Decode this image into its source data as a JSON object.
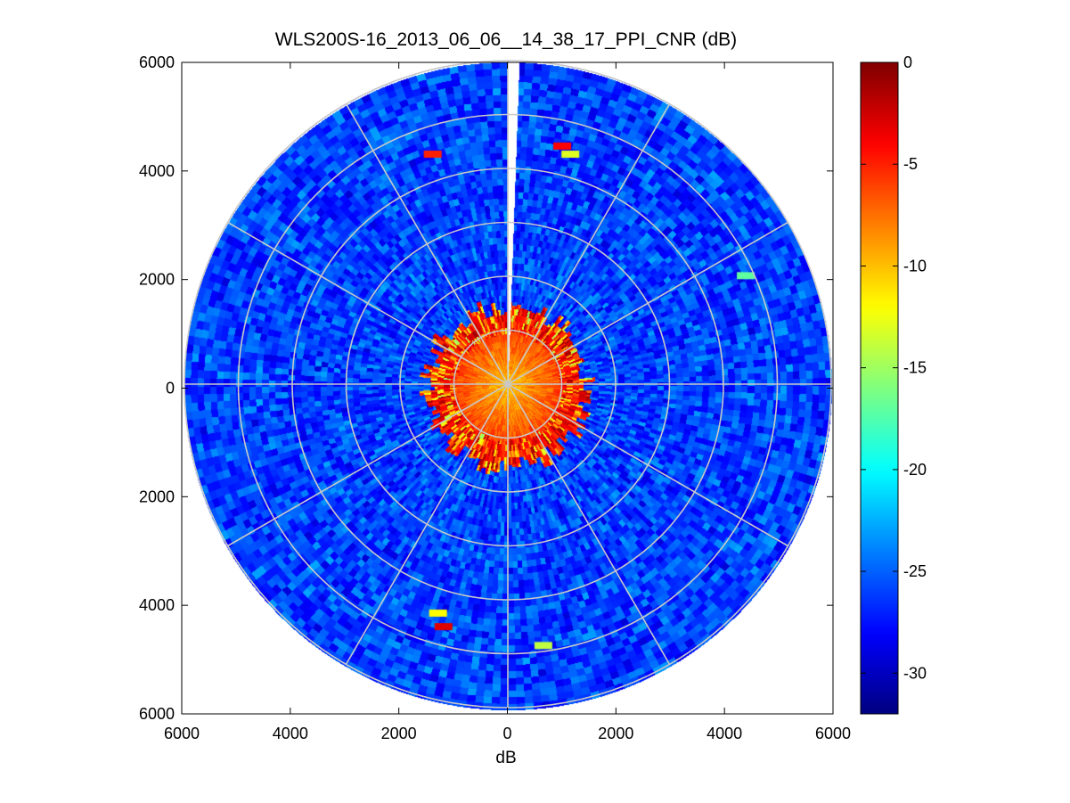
{
  "chart_data": {
    "type": "heatmap",
    "subtype": "polar-ppi",
    "title": "WLS200S-16_2013_06_06__14_38_17_PPI_CNR (dB)",
    "xlabel": "dB",
    "ylabel": "",
    "xlim": [
      -6000,
      6000
    ],
    "ylim": [
      -6000,
      6000
    ],
    "x_ticks": [
      -6000,
      -4000,
      -2000,
      0,
      2000,
      4000,
      6000
    ],
    "y_ticks": [
      -6000,
      -4000,
      -2000,
      0,
      2000,
      4000,
      6000
    ],
    "x_tick_labels": [
      "6000",
      "4000",
      "2000",
      "0",
      "2000",
      "4000",
      "6000"
    ],
    "y_tick_labels": [
      "6000",
      "4000",
      "2000",
      "0",
      "2000",
      "4000",
      "6000"
    ],
    "max_range": 6000,
    "range_rings": [
      1000,
      2000,
      3000,
      4000,
      5000,
      6000
    ],
    "spoke_angles_deg": [
      0,
      30,
      60,
      90,
      120,
      150,
      180,
      210,
      240,
      270,
      300,
      330
    ],
    "grid": true,
    "colormap": "jet",
    "colorbar": {
      "clim": [
        -32,
        0
      ],
      "ticks": [
        0,
        -5,
        -10,
        -15,
        -20,
        -25,
        -30
      ],
      "tick_labels": [
        "0",
        "-5",
        "-10",
        "-15",
        "-20",
        "-25",
        "-30"
      ],
      "location": "right"
    },
    "regions": [
      {
        "name": "background",
        "cnr_db_range": [
          -29,
          -23
        ]
      },
      {
        "name": "near-field core",
        "range_m": [
          0,
          1000
        ],
        "cnr_db_range": [
          -12,
          -6
        ]
      },
      {
        "name": "near-field edge",
        "range_m": [
          1000,
          1500
        ],
        "cnr_db_range": [
          -6,
          -1
        ]
      },
      {
        "name": "blind sector",
        "azimuth_deg": [
          0,
          2
        ],
        "value": "no data"
      }
    ],
    "hotspots": [
      {
        "x": -1400,
        "y": 4300,
        "cnr_db": -5
      },
      {
        "x": 1000,
        "y": 4450,
        "cnr_db": -4
      },
      {
        "x": 1150,
        "y": 4300,
        "cnr_db": -13
      },
      {
        "x": 4400,
        "y": 2050,
        "cnr_db": -17
      },
      {
        "x": -1200,
        "y": -4450,
        "cnr_db": -3
      },
      {
        "x": -1300,
        "y": -4200,
        "cnr_db": -12
      },
      {
        "x": 650,
        "y": -4800,
        "cnr_db": -14
      }
    ]
  }
}
